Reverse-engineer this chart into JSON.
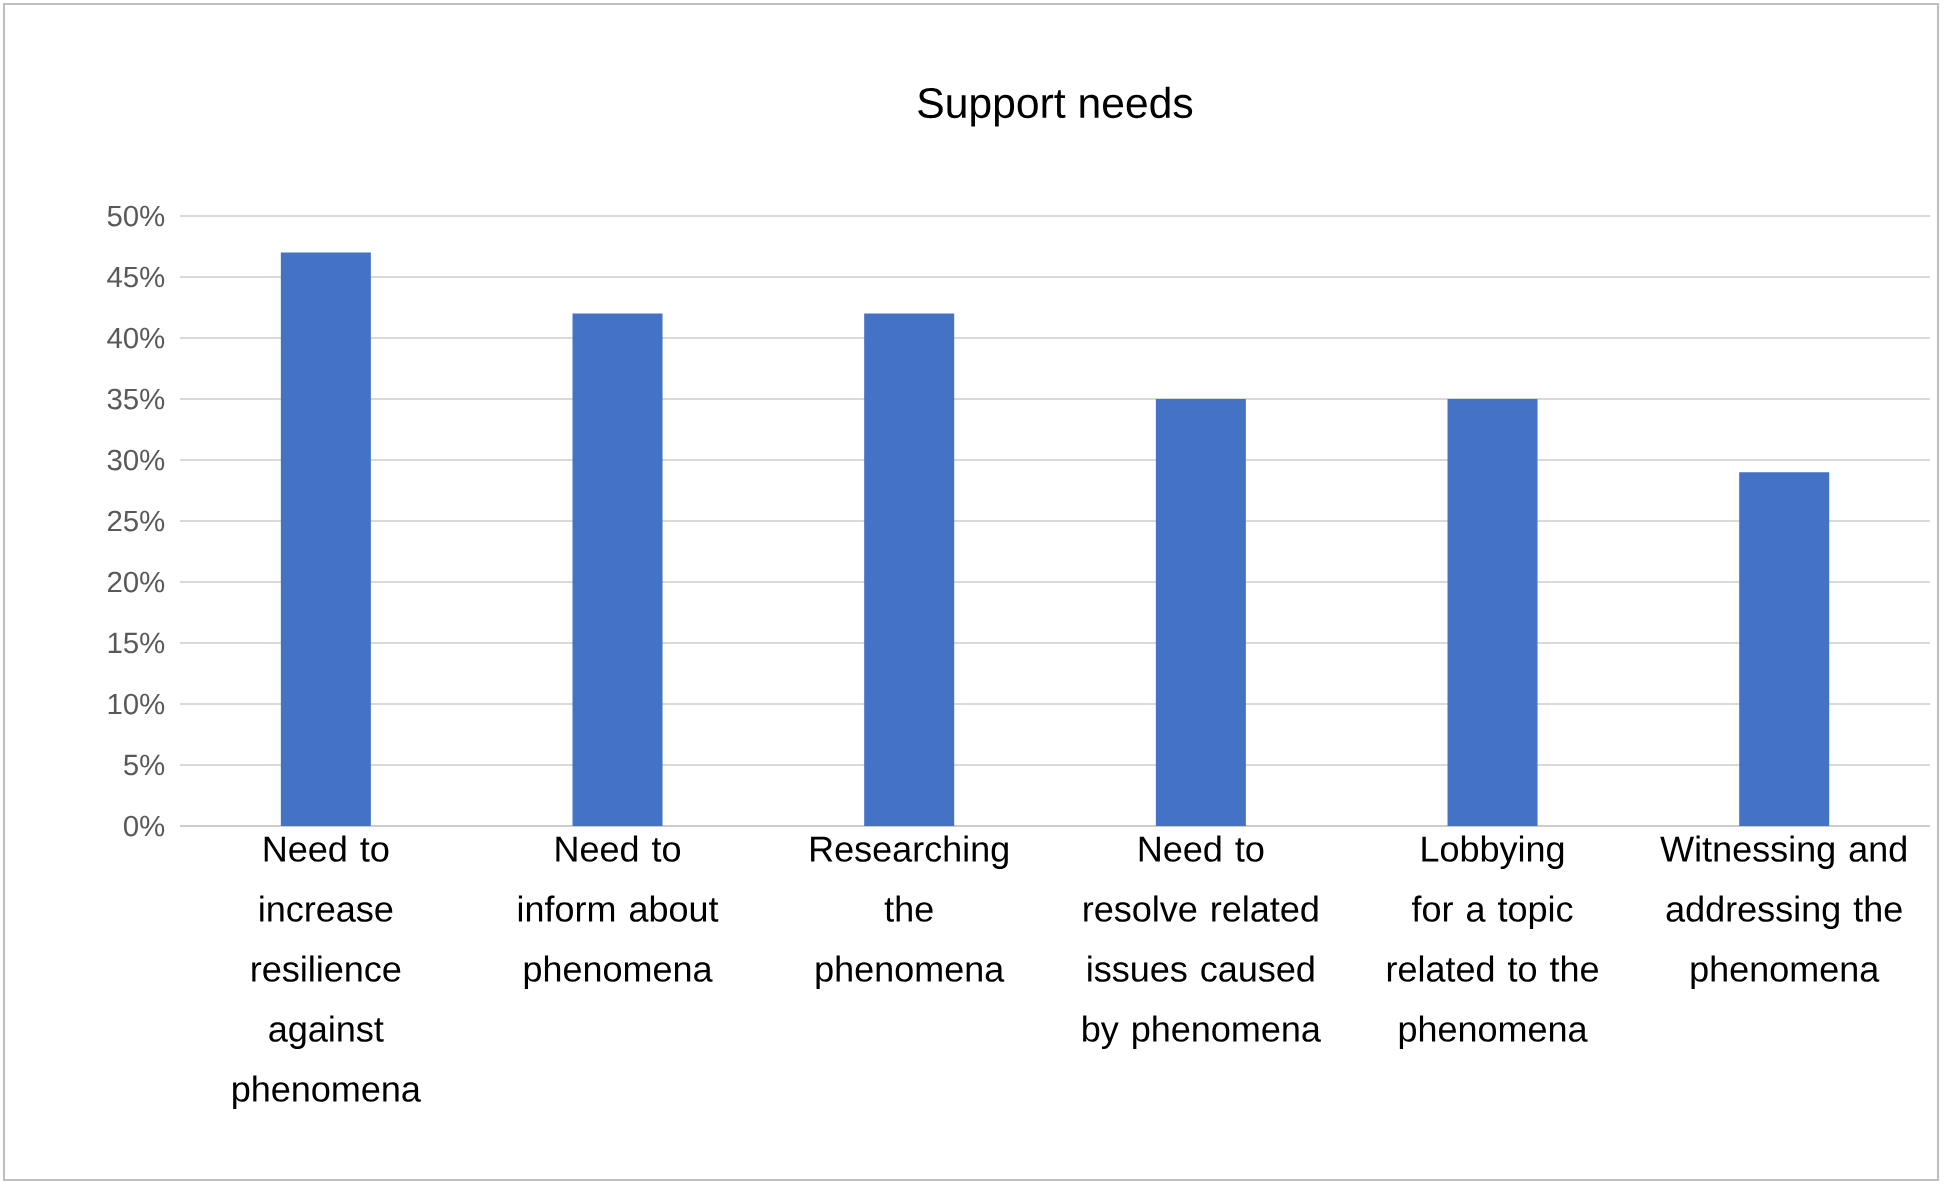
{
  "chart_data": {
    "type": "bar",
    "title": "Support needs",
    "categories": [
      "Need to increase resilience against phenomena",
      "Need to inform about phenomena",
      "Researching the phenomena",
      "Need to resolve related issues caused by phenomena",
      "Lobbying for a topic related to the phenomena",
      "Witnessing and addressing the phenomena"
    ],
    "values": [
      47,
      42,
      42,
      35,
      35,
      29
    ],
    "color": "#4472c4",
    "ylim": [
      0,
      50
    ],
    "yticks": [
      {
        "value": 0,
        "label": "0%"
      },
      {
        "value": 5,
        "label": "5%"
      },
      {
        "value": 10,
        "label": "10%"
      },
      {
        "value": 15,
        "label": "15%"
      },
      {
        "value": 20,
        "label": "20%"
      },
      {
        "value": 25,
        "label": "25%"
      },
      {
        "value": 30,
        "label": "30%"
      },
      {
        "value": 35,
        "label": "35%"
      },
      {
        "value": 40,
        "label": "40%"
      },
      {
        "value": 45,
        "label": "45%"
      },
      {
        "value": 50,
        "label": "50%"
      }
    ],
    "grid": "y"
  }
}
